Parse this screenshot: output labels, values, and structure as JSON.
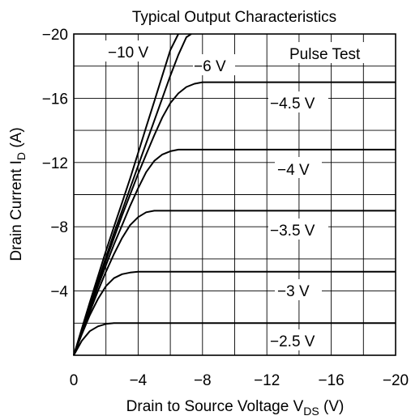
{
  "chart_data": {
    "type": "line",
    "title": "Typical Output Characteristics",
    "xlabel": "Drain to Source Voltage V",
    "xlabel_sub": "DS",
    "xlabel_unit": " (V)",
    "ylabel": "Drain Current I",
    "ylabel_sub": "D",
    "ylabel_unit": " (A)",
    "xlim": [
      0,
      -20
    ],
    "ylim": [
      0,
      -20
    ],
    "x_ticks": [
      0,
      -4,
      -8,
      -12,
      -16,
      -20
    ],
    "x_tick_labels": [
      "0",
      "−4",
      "−8",
      "−12",
      "−16",
      "−20"
    ],
    "y_ticks": [
      -4,
      -8,
      -12,
      -16,
      -20
    ],
    "y_tick_labels": [
      "−4",
      "−8",
      "−12",
      "−16",
      "−20"
    ],
    "grid": true,
    "annotation": "Pulse Test",
    "series": [
      {
        "name": "−10 V",
        "x": [
          0,
          -0.5,
          -1,
          -1.5,
          -2,
          -2.5,
          -3,
          -3.5,
          -4,
          -4.5,
          -5,
          -5.5,
          -6,
          -6.5
        ],
        "y": [
          0,
          -1.65,
          -3.3,
          -4.9,
          -6.5,
          -8.0,
          -9.5,
          -11.0,
          -12.6,
          -14.2,
          -15.8,
          -17.4,
          -19.0,
          -20.3
        ]
      },
      {
        "name": "−6 V",
        "x": [
          0,
          -0.5,
          -1,
          -1.5,
          -2,
          -2.5,
          -3,
          -3.5,
          -4,
          -4.5,
          -5,
          -5.5,
          -6,
          -6.5,
          -7,
          -7.3
        ],
        "y": [
          0,
          -1.55,
          -3.1,
          -4.6,
          -6.1,
          -7.6,
          -9.0,
          -10.4,
          -11.8,
          -13.2,
          -14.6,
          -16.0,
          -17.4,
          -18.7,
          -19.8,
          -20.2
        ]
      },
      {
        "name": "−4.5 V",
        "x": [
          0,
          -0.5,
          -1,
          -1.5,
          -2,
          -2.5,
          -3,
          -3.5,
          -4,
          -4.5,
          -5,
          -5.5,
          -6,
          -6.5,
          -7,
          -7.5,
          -8,
          -10,
          -12,
          -14,
          -16,
          -18,
          -20
        ],
        "y": [
          0,
          -1.5,
          -3.0,
          -4.5,
          -5.9,
          -7.3,
          -8.7,
          -10.0,
          -11.3,
          -12.5,
          -13.7,
          -14.8,
          -15.7,
          -16.3,
          -16.7,
          -16.9,
          -17.0,
          -17.0,
          -17.0,
          -17.0,
          -17.0,
          -17.0,
          -17.0
        ]
      },
      {
        "name": "−4 V",
        "x": [
          0,
          -0.5,
          -1,
          -1.5,
          -2,
          -2.5,
          -3,
          -3.5,
          -4,
          -4.5,
          -5,
          -5.5,
          -6,
          -6.5,
          -7,
          -8,
          -10,
          -12,
          -14,
          -16,
          -18,
          -20
        ],
        "y": [
          0,
          -1.45,
          -2.9,
          -4.3,
          -5.6,
          -6.9,
          -8.1,
          -9.3,
          -10.4,
          -11.4,
          -12.1,
          -12.5,
          -12.7,
          -12.8,
          -12.8,
          -12.8,
          -12.8,
          -12.8,
          -12.8,
          -12.8,
          -12.8,
          -12.8
        ]
      },
      {
        "name": "−3.5 V",
        "x": [
          0,
          -0.5,
          -1,
          -1.5,
          -2,
          -2.5,
          -3,
          -3.5,
          -4,
          -4.5,
          -5,
          -5.5,
          -6,
          -8,
          -10,
          -12,
          -14,
          -16,
          -18,
          -20
        ],
        "y": [
          0,
          -1.35,
          -2.7,
          -4.0,
          -5.2,
          -6.3,
          -7.3,
          -8.1,
          -8.6,
          -8.9,
          -9.0,
          -9.0,
          -9.0,
          -9.0,
          -9.0,
          -9.0,
          -9.0,
          -9.0,
          -9.0,
          -9.0
        ]
      },
      {
        "name": "−3 V",
        "x": [
          0,
          -0.5,
          -1,
          -1.5,
          -2,
          -2.5,
          -3,
          -3.5,
          -4,
          -4.5,
          -5,
          -6,
          -8,
          -10,
          -12,
          -14,
          -16,
          -18,
          -20
        ],
        "y": [
          0,
          -1.3,
          -2.5,
          -3.5,
          -4.3,
          -4.8,
          -5.05,
          -5.15,
          -5.2,
          -5.2,
          -5.2,
          -5.2,
          -5.2,
          -5.2,
          -5.2,
          -5.2,
          -5.2,
          -5.2,
          -5.2
        ]
      },
      {
        "name": "−2.5 V",
        "x": [
          0,
          -0.5,
          -1,
          -1.5,
          -2,
          -2.5,
          -3,
          -3.5,
          -4,
          -6,
          -8,
          -10,
          -12,
          -14,
          -16,
          -18,
          -20
        ],
        "y": [
          0,
          -0.9,
          -1.5,
          -1.8,
          -1.95,
          -2.0,
          -2.0,
          -2.0,
          -2.0,
          -2.0,
          -2.0,
          -2.0,
          -2.0,
          -2.0,
          -2.0,
          -2.0,
          -2.0
        ]
      }
    ]
  }
}
